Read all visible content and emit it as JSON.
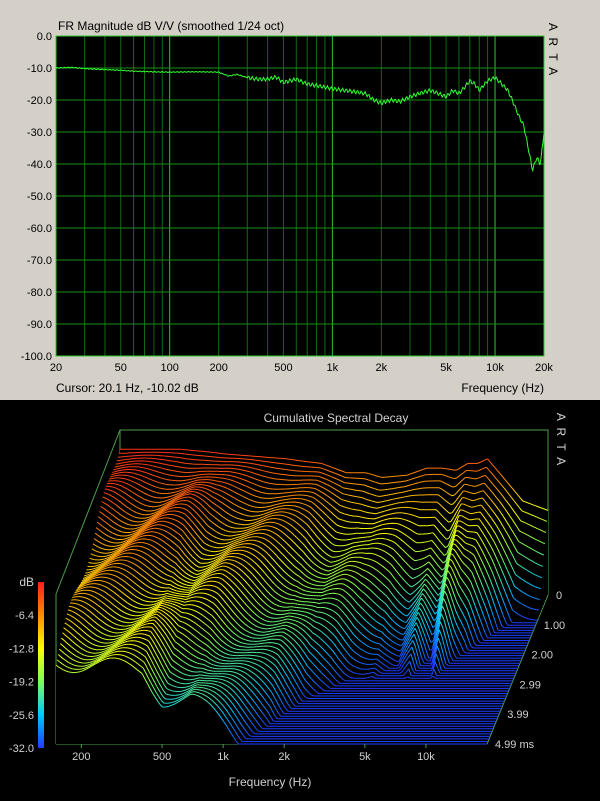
{
  "chart_data": [
    {
      "type": "line",
      "title": "FR Magnitude dB V/V (smoothed 1/24 oct)",
      "brand_label": "A R T A",
      "xlabel": "Frequency (Hz)",
      "cursor_readout": "Cursor: 20.1 Hz, -10.02 dB",
      "x_scale": "log",
      "xlim": [
        20,
        20000
      ],
      "ylim": [
        -100,
        0
      ],
      "grid": true,
      "x_ticks": [
        {
          "value": 20,
          "label": "20"
        },
        {
          "value": 50,
          "label": "50"
        },
        {
          "value": 100,
          "label": "100"
        },
        {
          "value": 200,
          "label": "200"
        },
        {
          "value": 500,
          "label": "500"
        },
        {
          "value": 1000,
          "label": "1k"
        },
        {
          "value": 2000,
          "label": "2k"
        },
        {
          "value": 5000,
          "label": "5k"
        },
        {
          "value": 10000,
          "label": "10k"
        },
        {
          "value": 20000,
          "label": "20k"
        }
      ],
      "y_ticks": [
        {
          "value": 0,
          "label": "0.0"
        },
        {
          "value": -10,
          "label": "-10.0"
        },
        {
          "value": -20,
          "label": "-20.0"
        },
        {
          "value": -30,
          "label": "-30.0"
        },
        {
          "value": -40,
          "label": "-40.0"
        },
        {
          "value": -50,
          "label": "-50.0"
        },
        {
          "value": -60,
          "label": "-60.0"
        },
        {
          "value": -70,
          "label": "-70.0"
        },
        {
          "value": -80,
          "label": "-80.0"
        },
        {
          "value": -90,
          "label": "-90.0"
        },
        {
          "value": -100,
          "label": "-100.0"
        }
      ],
      "series": [
        {
          "color": "#33ff33",
          "x": [
            20,
            25,
            30,
            40,
            50,
            60,
            80,
            100,
            130,
            160,
            200,
            230,
            260,
            300,
            350,
            400,
            450,
            500,
            600,
            700,
            800,
            900,
            1000,
            1200,
            1400,
            1600,
            1800,
            2000,
            2300,
            2600,
            3000,
            3400,
            4000,
            4500,
            5000,
            5500,
            6000,
            6500,
            7000,
            7500,
            8000,
            9000,
            10000,
            11000,
            12000,
            13000,
            14000,
            15000,
            16000,
            17000,
            18000,
            19000,
            20000
          ],
          "y": [
            -10,
            -9.8,
            -10.2,
            -10.5,
            -10.7,
            -11,
            -11.2,
            -11.3,
            -11.2,
            -11.2,
            -11.3,
            -12.5,
            -12,
            -13,
            -13.5,
            -13.5,
            -12.8,
            -14.5,
            -13.5,
            -15,
            -15.5,
            -16,
            -16.5,
            -17,
            -17.5,
            -18,
            -20,
            -21,
            -20,
            -20.5,
            -19,
            -18,
            -17,
            -18,
            -19,
            -17,
            -18,
            -16,
            -14,
            -15,
            -17,
            -14,
            -13,
            -15,
            -17,
            -21,
            -25,
            -28,
            -35,
            -42,
            -38,
            -40,
            -30
          ]
        }
      ]
    },
    {
      "type": "waterfall",
      "title": "Cumulative Spectral Decay",
      "brand_label": "A R T A",
      "xlabel": "Frequency (Hz)",
      "x_scale": "log",
      "xlim": [
        150,
        20000
      ],
      "time_unit": "ms",
      "time_range": [
        0,
        4.99
      ],
      "x_ticks": [
        {
          "value": 200,
          "label": "200"
        },
        {
          "value": 500,
          "label": "500"
        },
        {
          "value": 1000,
          "label": "1k"
        },
        {
          "value": 2000,
          "label": "2k"
        },
        {
          "value": 5000,
          "label": "5k"
        },
        {
          "value": 10000,
          "label": "10k"
        }
      ],
      "time_ticks": [
        {
          "value": 0,
          "label": "0"
        },
        {
          "value": 1.0,
          "label": "1.00"
        },
        {
          "value": 2.0,
          "label": "2.00"
        },
        {
          "value": 2.99,
          "label": "2.99"
        },
        {
          "value": 3.99,
          "label": "3.99"
        },
        {
          "value": 4.99,
          "label": "4.99 ms"
        }
      ],
      "colorbar": {
        "unit_label": "dB",
        "range": [
          -32,
          0
        ],
        "ticks": [
          {
            "value": -6.4,
            "label": "-6.4"
          },
          {
            "value": -12.8,
            "label": "-12.8"
          },
          {
            "value": -19.2,
            "label": "-19.2"
          },
          {
            "value": -25.6,
            "label": "-25.6"
          },
          {
            "value": -32.0,
            "label": "-32.0"
          }
        ],
        "colors": [
          "#1e3cff",
          "#00c8ff",
          "#7dff5a",
          "#ffff00",
          "#ff8c00",
          "#ff1e1e"
        ]
      },
      "slice_count": 60,
      "freq_points": [
        150,
        200,
        300,
        400,
        500,
        700,
        1000,
        1200,
        1500,
        2000,
        2500,
        3000,
        4000,
        5000,
        6000,
        7000,
        8000,
        9000,
        10000,
        12000,
        15000,
        20000
      ],
      "initial_level_db": [
        -1,
        -1,
        -1,
        -1.5,
        -2,
        -2.5,
        -3,
        -3.5,
        -4,
        -6,
        -6,
        -7,
        -6.5,
        -5,
        -5,
        -5.5,
        -4,
        -4,
        -3,
        -7,
        -12,
        -14
      ],
      "decay_db_per_ms": [
        2.6,
        2.8,
        3,
        3,
        4,
        4,
        5,
        5.5,
        6,
        7,
        7.5,
        8,
        9,
        12,
        10,
        14,
        9,
        12,
        14,
        16,
        20,
        20
      ]
    }
  ]
}
